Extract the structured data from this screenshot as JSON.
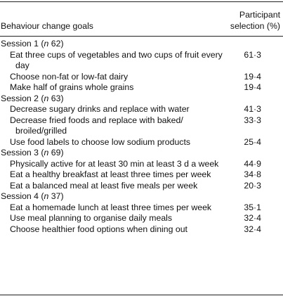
{
  "header": {
    "goals": "Behaviour change goals",
    "selection": "Participant selection (%)"
  },
  "sessions": [
    {
      "label_parts": [
        "Session 1 (",
        "n",
        " 62)"
      ],
      "rows": [
        {
          "goal": "Eat three cups of vegetables and two cups of fruit every day",
          "selection": "61·3"
        },
        {
          "goal": "Choose non-fat or low-fat dairy",
          "selection": "19·4"
        },
        {
          "goal": "Make half of grains whole grains",
          "selection": "19·4"
        }
      ]
    },
    {
      "label_parts": [
        "Session 2 (",
        "n",
        " 63)"
      ],
      "rows": [
        {
          "goal": "Decrease sugary drinks and replace with water",
          "selection": "41·3"
        },
        {
          "goal": "Decrease fried foods and replace with baked/ broiled/grilled",
          "selection": "33·3"
        },
        {
          "goal": "Use food labels to choose low sodium products",
          "selection": "25·4"
        }
      ]
    },
    {
      "label_parts": [
        "Session 3 (",
        "n",
        " 69)"
      ],
      "rows": [
        {
          "goal": "Physically active for at least 30 min at least 3 d a week",
          "selection": "44·9"
        },
        {
          "goal": "Eat a healthy breakfast at least three times per week",
          "selection": "34·8"
        },
        {
          "goal": "Eat a balanced meal at least five meals per week",
          "selection": "20·3"
        }
      ]
    },
    {
      "label_parts": [
        "Session 4 (",
        "n",
        " 37)"
      ],
      "rows": [
        {
          "goal": "Eat a homemade lunch at least three times per week",
          "selection": "35·1"
        },
        {
          "goal": "Use meal planning to organise daily meals",
          "selection": "32·4"
        },
        {
          "goal": "Choose healthier food options when dining out",
          "selection": "32·4"
        }
      ]
    }
  ]
}
